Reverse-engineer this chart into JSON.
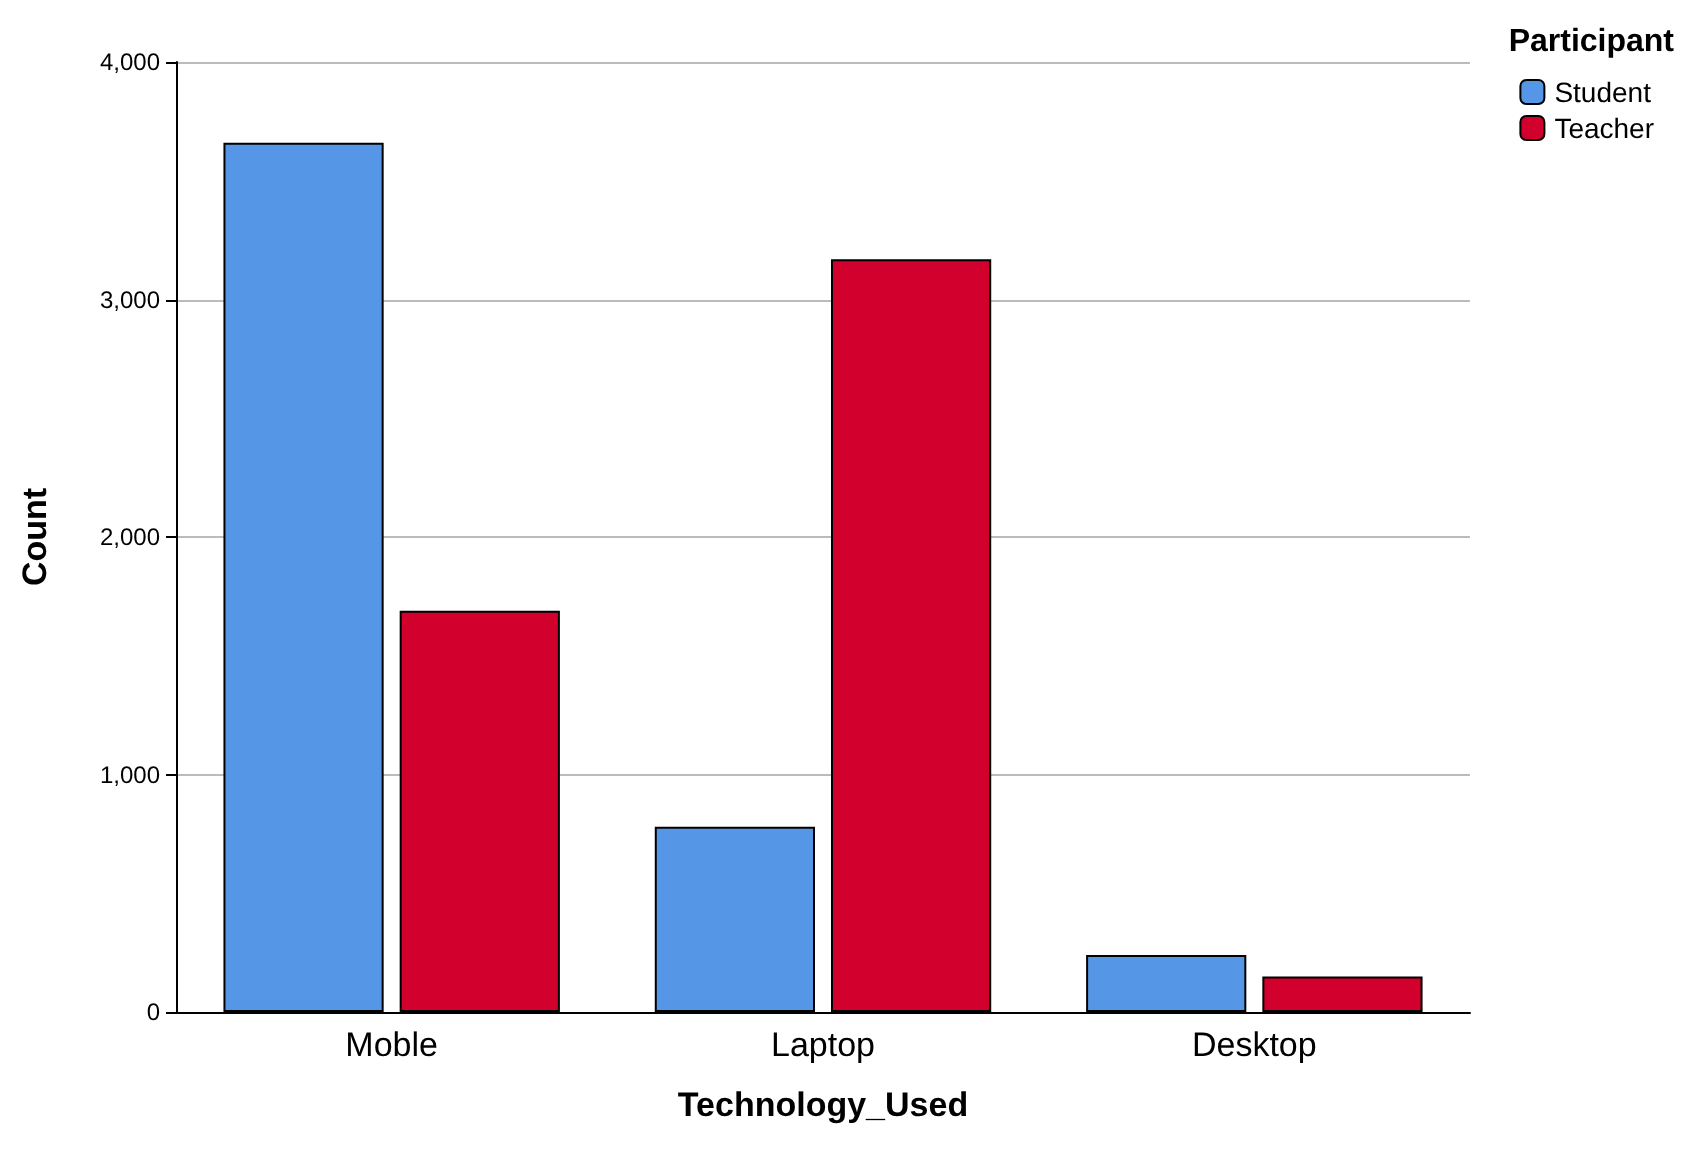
{
  "chart_data": {
    "type": "bar",
    "xlabel": "Technology_Used",
    "ylabel": "Count",
    "legend_title": "Participant",
    "categories": [
      "Moble",
      "Laptop",
      "Desktop"
    ],
    "series": [
      {
        "name": "Student",
        "color": "#5597e6",
        "values": [
          3660,
          780,
          240
        ]
      },
      {
        "name": "Teacher",
        "color": "#d2002d",
        "values": [
          1690,
          3170,
          150
        ]
      }
    ],
    "ylim": [
      0,
      4000
    ],
    "yticks": [
      {
        "value": 0,
        "label": "0"
      },
      {
        "value": 1000,
        "label": "1,000"
      },
      {
        "value": 2000,
        "label": "2,000"
      },
      {
        "value": 3000,
        "label": "3,000"
      },
      {
        "value": 4000,
        "label": "4,000"
      }
    ],
    "grid": "y",
    "legend": "top right"
  }
}
